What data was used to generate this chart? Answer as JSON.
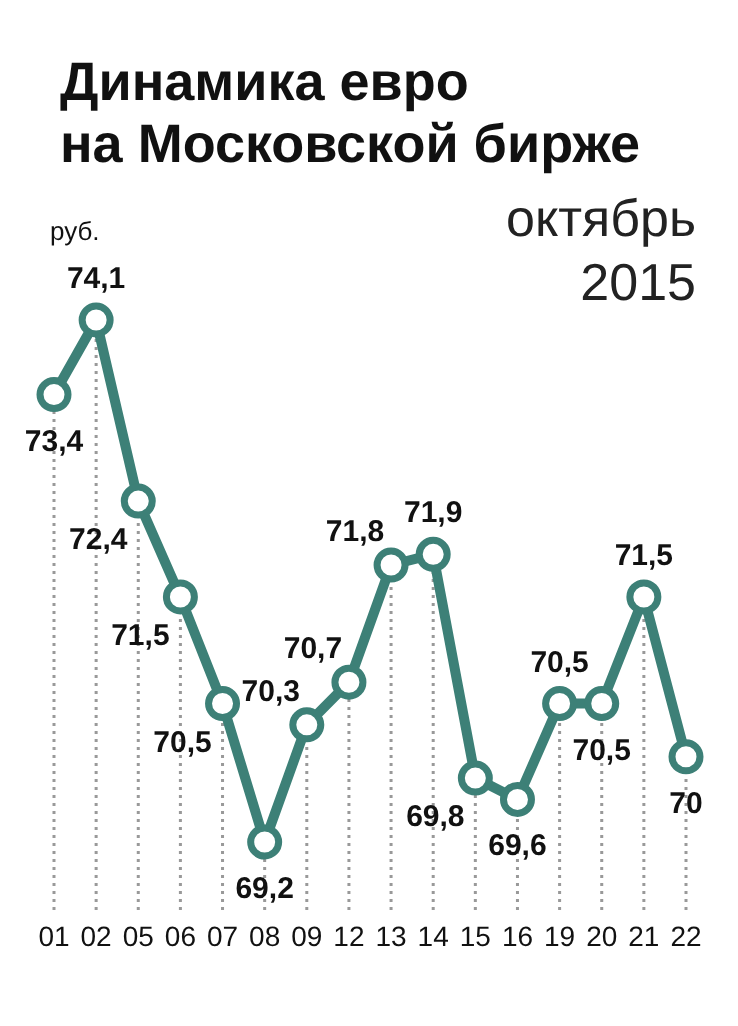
{
  "chart_data": {
    "type": "line",
    "title": "Динамика евро\nна Московской бирже",
    "subtitle": "октябрь\n2015",
    "ylabel": "руб.",
    "categories": [
      "01",
      "02",
      "05",
      "06",
      "07",
      "08",
      "09",
      "12",
      "13",
      "14",
      "15",
      "16",
      "19",
      "20",
      "21",
      "22"
    ],
    "series": [
      {
        "color": "#3d8077",
        "values": [
          73.4,
          74.1,
          72.4,
          71.5,
          70.5,
          69.2,
          70.3,
          70.7,
          71.8,
          71.9,
          69.8,
          69.6,
          70.5,
          70.5,
          71.5,
          70
        ],
        "value_labels": [
          "73,4",
          "74,1",
          "72,4",
          "71,5",
          "70,5",
          "69,2",
          "70,3",
          "70,7",
          "71,8",
          "71,9",
          "69,8",
          "69,6",
          "70,5",
          "70,5",
          "71,5",
          "70"
        ]
      }
    ],
    "marker": "circle",
    "grid": "x"
  }
}
